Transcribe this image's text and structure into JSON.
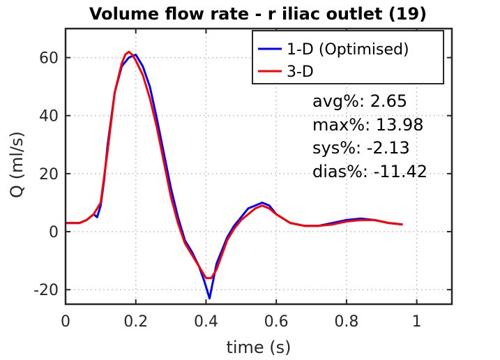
{
  "chart_data": {
    "type": "line",
    "title": "Volume flow rate - r iliac outlet (19)",
    "xlabel": "time (s)",
    "ylabel": "Q (ml/s)",
    "xlim": [
      0,
      1.1
    ],
    "ylim": [
      -25,
      70
    ],
    "xticks": [
      0,
      0.2,
      0.4,
      0.6,
      0.8,
      1
    ],
    "xtick_labels": [
      "0",
      "0.2",
      "0.4",
      "0.6",
      "0.8",
      "1"
    ],
    "yticks": [
      -20,
      0,
      20,
      40,
      60
    ],
    "ytick_labels": [
      "-20",
      "0",
      "20",
      "40",
      "60"
    ],
    "grid": true,
    "legend_position": "top-right",
    "series": [
      {
        "name": "1-D (Optimised)",
        "color": "#0000ff",
        "x": [
          0.0,
          0.02,
          0.04,
          0.06,
          0.08,
          0.09,
          0.1,
          0.11,
          0.12,
          0.14,
          0.16,
          0.18,
          0.2,
          0.22,
          0.24,
          0.26,
          0.28,
          0.3,
          0.32,
          0.34,
          0.36,
          0.38,
          0.395,
          0.41,
          0.43,
          0.46,
          0.48,
          0.5,
          0.52,
          0.54,
          0.56,
          0.58,
          0.6,
          0.64,
          0.68,
          0.72,
          0.76,
          0.8,
          0.84,
          0.88,
          0.92,
          0.96
        ],
        "y": [
          3,
          3,
          3,
          4,
          6,
          5,
          9,
          18,
          30,
          48,
          57,
          60,
          61,
          57,
          50,
          39,
          27,
          15,
          5,
          -3,
          -7,
          -12,
          -17,
          -23,
          -11,
          -2,
          2,
          5,
          8,
          9,
          10,
          9,
          6,
          3,
          2,
          2,
          3,
          4,
          4.5,
          4,
          3,
          2.5
        ]
      },
      {
        "name": "3-D",
        "color": "#ff0000",
        "x": [
          0.0,
          0.02,
          0.04,
          0.06,
          0.08,
          0.1,
          0.12,
          0.14,
          0.16,
          0.17,
          0.18,
          0.19,
          0.2,
          0.22,
          0.24,
          0.26,
          0.28,
          0.3,
          0.32,
          0.34,
          0.36,
          0.38,
          0.4,
          0.415,
          0.43,
          0.46,
          0.48,
          0.5,
          0.52,
          0.54,
          0.56,
          0.58,
          0.6,
          0.64,
          0.68,
          0.72,
          0.76,
          0.8,
          0.84,
          0.88,
          0.92,
          0.96
        ],
        "y": [
          3,
          3,
          3,
          4,
          6,
          10,
          28,
          48,
          58,
          61,
          62,
          61,
          59,
          54,
          46,
          36,
          24,
          12,
          3,
          -4,
          -8,
          -12,
          -16,
          -16,
          -13,
          -3,
          1,
          4,
          6,
          8,
          9,
          8,
          6,
          3,
          2,
          2,
          2.5,
          3.5,
          4,
          4,
          3,
          2.5
        ]
      }
    ],
    "annotations": [
      "avg%: 2.65",
      "max%: 13.98",
      "sys%: -2.13",
      "dias%: -11.42"
    ]
  }
}
